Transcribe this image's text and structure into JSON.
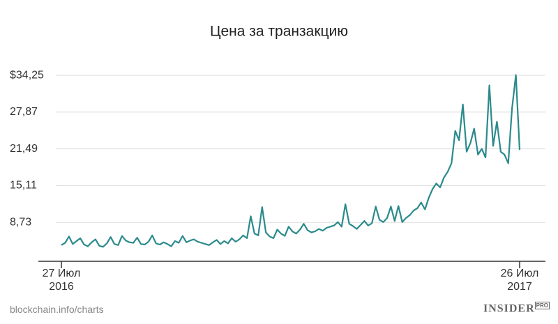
{
  "chart_data": {
    "type": "line",
    "title": "Цена за транзакцию",
    "series": [
      {
        "name": "Цена за транзакцию",
        "color": "#2b8a8c",
        "values": [
          4.8,
          5.2,
          6.3,
          5.0,
          5.5,
          6.0,
          4.9,
          4.6,
          5.3,
          5.8,
          4.7,
          4.5,
          5.1,
          6.2,
          5.0,
          4.8,
          6.4,
          5.6,
          5.3,
          5.2,
          6.1,
          5.0,
          4.9,
          5.4,
          6.5,
          5.1,
          4.9,
          5.3,
          5.0,
          4.6,
          5.5,
          5.2,
          6.4,
          5.3,
          5.6,
          5.8,
          5.4,
          5.2,
          5.0,
          4.8,
          5.3,
          5.7,
          5.0,
          5.5,
          5.1,
          6.0,
          5.4,
          5.8,
          6.5,
          6.0,
          9.8,
          6.8,
          6.5,
          11.4,
          7.0,
          6.3,
          6.0,
          7.5,
          6.8,
          6.4,
          8.0,
          7.2,
          6.8,
          7.5,
          8.5,
          7.4,
          7.0,
          7.2,
          7.6,
          7.3,
          7.8,
          8.0,
          8.2,
          8.8,
          8.0,
          11.9,
          8.5,
          8.1,
          7.6,
          8.3,
          9.0,
          8.2,
          8.6,
          11.5,
          9.2,
          8.8,
          9.5,
          11.5,
          9.0,
          11.6,
          8.8,
          9.5,
          10.0,
          10.8,
          11.2,
          12.2,
          11.0,
          13.0,
          14.5,
          15.5,
          14.8,
          16.5,
          17.5,
          19.0,
          24.6,
          23.0,
          29.2,
          21.0,
          22.5,
          25.0,
          20.5,
          21.5,
          20.0,
          32.5,
          22.0,
          26.2,
          21.0,
          20.5,
          19.0,
          28.5,
          34.3,
          21.3
        ]
      }
    ],
    "xlim": [
      0,
      121
    ],
    "xticks": [
      {
        "value": 0,
        "label": "27 Июл\n2016"
      },
      {
        "value": 121,
        "label": "26 Июл\n2017"
      }
    ],
    "ylim": [
      2,
      35.5
    ],
    "yticks": [
      {
        "value": 8.73,
        "label": "8,73"
      },
      {
        "value": 15.11,
        "label": "15,11"
      },
      {
        "value": 21.49,
        "label": "21,49"
      },
      {
        "value": 27.87,
        "label": "27,87"
      },
      {
        "value": 34.25,
        "label": "$34,25"
      }
    ],
    "grid": true
  },
  "source": "blockchain.info/charts",
  "logo": {
    "text": "INSIDER",
    "badge": "PRO"
  }
}
